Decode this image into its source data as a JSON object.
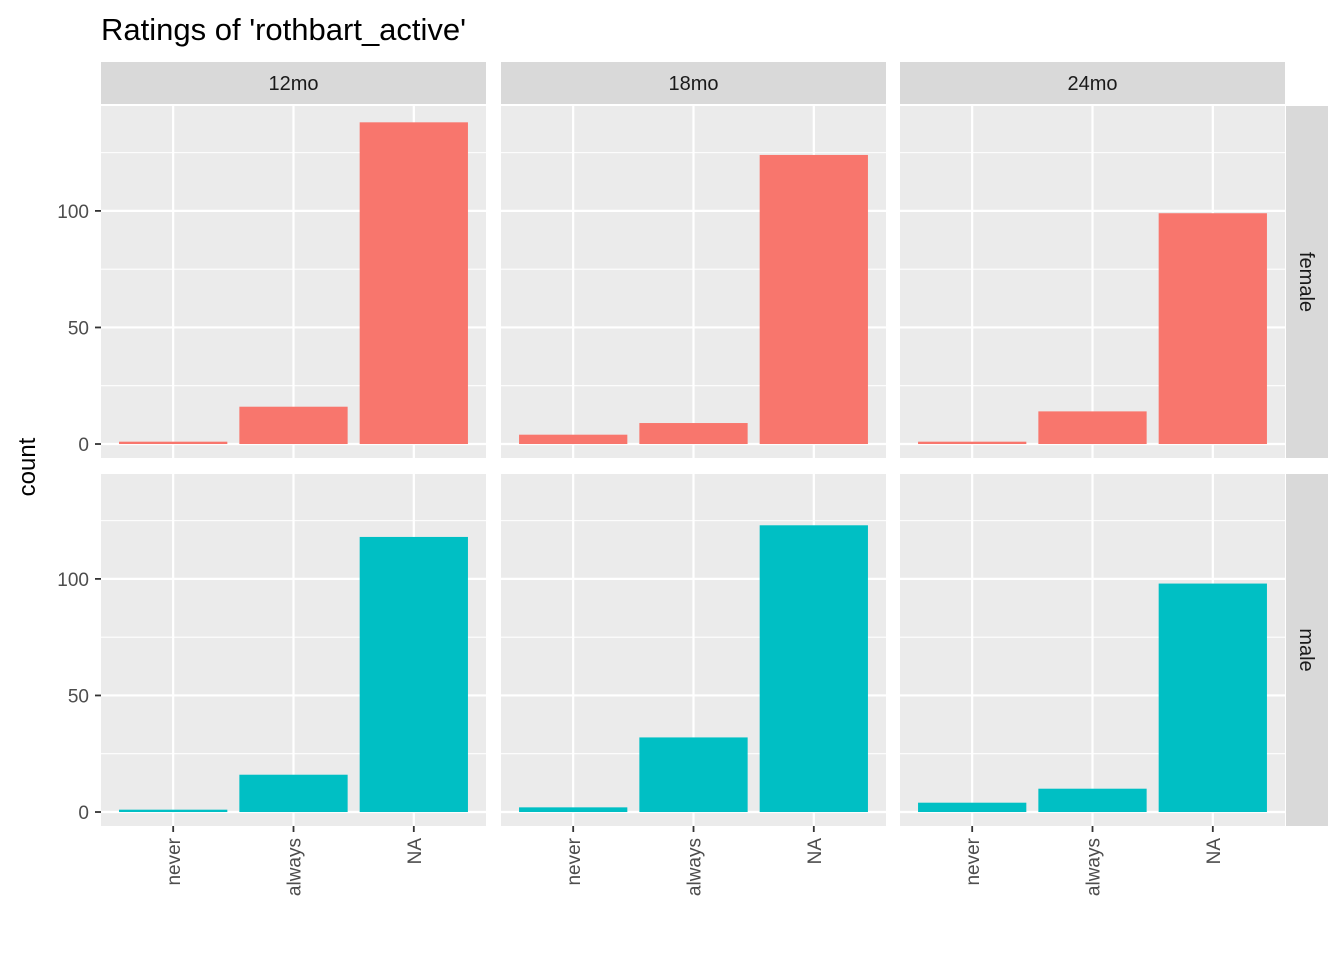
{
  "chart_data": {
    "type": "bar",
    "title": "Ratings of 'rothbart_active'",
    "xlabel": "",
    "ylabel": "count",
    "ylim": [
      -6,
      145
    ],
    "yticks": [
      0,
      50,
      100
    ],
    "grid": true,
    "legend": "none",
    "categories": [
      "never",
      "always",
      "NA"
    ],
    "columns": [
      "12mo",
      "18mo",
      "24mo"
    ],
    "rows": [
      {
        "name": "female",
        "color": "#F8766D"
      },
      {
        "name": "male",
        "color": "#00BFC4"
      }
    ],
    "panels": [
      {
        "column": "12mo",
        "row": "female",
        "values": [
          1,
          16,
          138
        ]
      },
      {
        "column": "18mo",
        "row": "female",
        "values": [
          4,
          9,
          124
        ]
      },
      {
        "column": "24mo",
        "row": "female",
        "values": [
          1,
          14,
          99
        ]
      },
      {
        "column": "12mo",
        "row": "male",
        "values": [
          1,
          16,
          118
        ]
      },
      {
        "column": "18mo",
        "row": "male",
        "values": [
          2,
          32,
          123
        ]
      },
      {
        "column": "24mo",
        "row": "male",
        "values": [
          4,
          10,
          98
        ]
      }
    ]
  },
  "colors": {
    "panel_background": "#EBEBEB",
    "strip_background": "#D9D9D9",
    "grid_line": "#FFFFFF",
    "tick_mark": "#333333"
  }
}
